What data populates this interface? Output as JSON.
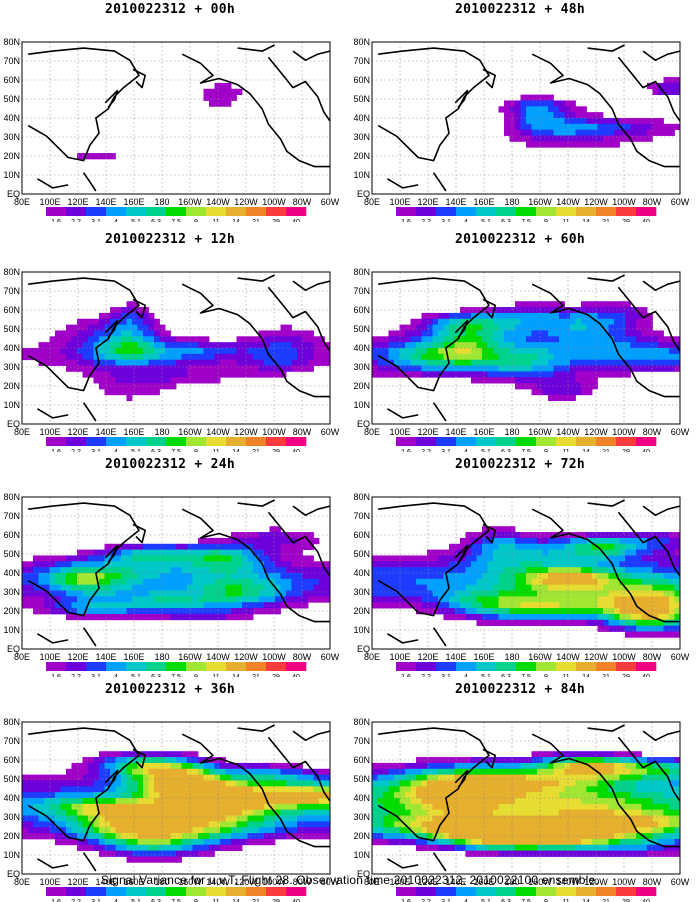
{
  "caption": "Signal Variance for u,v,T. Flight 28. Observation time 2010022312. 2010022100 ensemble.",
  "panels": [
    {
      "title": "2010022312 + 00h"
    },
    {
      "title": "2010022312 + 48h"
    },
    {
      "title": "2010022312 + 12h"
    },
    {
      "title": "2010022312 + 60h"
    },
    {
      "title": "2010022312 + 24h"
    },
    {
      "title": "2010022312 + 72h"
    },
    {
      "title": "2010022312 + 36h"
    },
    {
      "title": "2010022312 + 84h"
    }
  ],
  "chart_data": {
    "type": "heatmap",
    "lat_ticks": [
      "EQ",
      "10N",
      "20N",
      "30N",
      "40N",
      "50N",
      "60N",
      "70N",
      "80N"
    ],
    "lon_ticks": [
      "80E",
      "100E",
      "120E",
      "140E",
      "160E",
      "180",
      "160W",
      "140W",
      "120W",
      "100W",
      "80W",
      "60W"
    ],
    "colorbar": {
      "levels": [
        "1.6",
        "2.2",
        "3.1",
        "4",
        "5.1",
        "6.3",
        "7.5",
        "9",
        "11",
        "14",
        "21",
        "29",
        "40"
      ],
      "colors": [
        "#a000c8",
        "#6e00dc",
        "#1e3cff",
        "#00a0ff",
        "#00c8c8",
        "#00d28c",
        "#00dc00",
        "#a0e632",
        "#e6dc32",
        "#e6af2d",
        "#f08228",
        "#fa3c3c",
        "#f00082"
      ]
    },
    "lon_range": [
      "80E",
      "60W"
    ],
    "lat_range": [
      "EQ",
      "80N"
    ]
  }
}
